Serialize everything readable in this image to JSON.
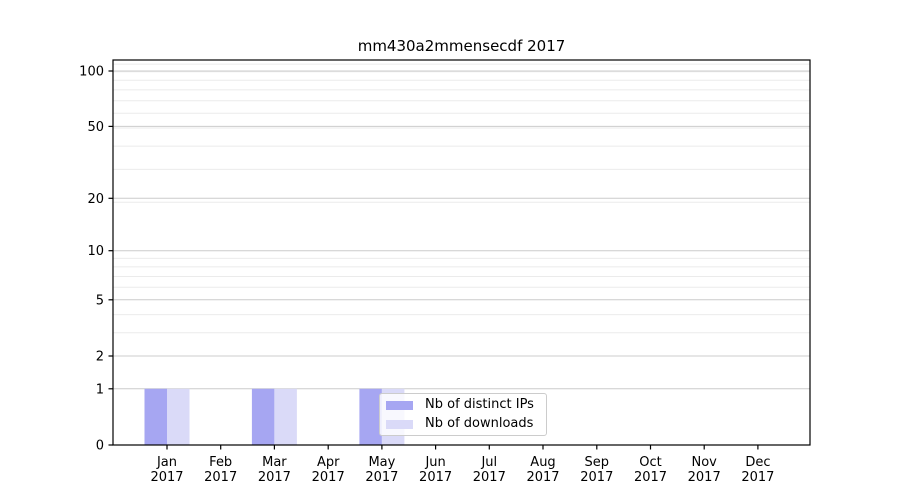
{
  "chart_data": {
    "type": "bar",
    "title": "mm430a2mmensecdf 2017",
    "categories": [
      "Jan 2017",
      "Feb 2017",
      "Mar 2017",
      "Apr 2017",
      "May 2017",
      "Jun 2017",
      "Jul 2017",
      "Aug 2017",
      "Sep 2017",
      "Oct 2017",
      "Nov 2017",
      "Dec 2017"
    ],
    "series": [
      {
        "name": "Nb of distinct IPs",
        "color": "#a6a6f2",
        "values": [
          1,
          0,
          1,
          0,
          1,
          0,
          0,
          0,
          0,
          0,
          0,
          0
        ]
      },
      {
        "name": "Nb of downloads",
        "color": "#dadaf8",
        "values": [
          1,
          0,
          1,
          0,
          1,
          0,
          0,
          0,
          0,
          0,
          0,
          0
        ]
      }
    ],
    "yscale": "log1p",
    "yticks": [
      0,
      1,
      2,
      5,
      10,
      20,
      50,
      100
    ],
    "ylim": [
      0,
      115
    ],
    "grid": "horizontal major and minor gridlines",
    "legend_position": "inside plot, lower center",
    "colors": {
      "major_grid": "#cccccc",
      "minor_grid": "#ebebeb",
      "spine": "#000000",
      "text": "#000000",
      "background": "#ffffff"
    }
  }
}
